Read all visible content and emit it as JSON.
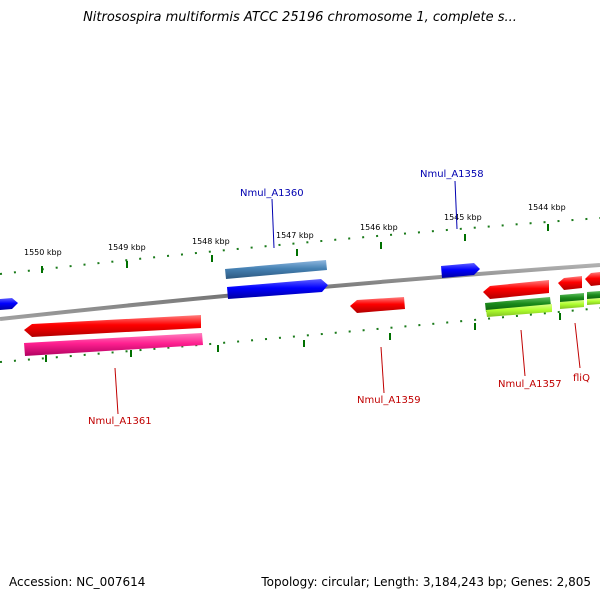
{
  "title": "Nitrosospira multiformis ATCC 25196 chromosome 1, complete s...",
  "footer": {
    "accession": "Accession: NC_007614",
    "summary": "Topology: circular; Length: 3,184,243 bp; Genes: 2,805"
  },
  "scale_labels": [
    "1550 kbp",
    "1549 kbp",
    "1548 kbp",
    "1547 kbp",
    "1546 kbp",
    "1545 kbp",
    "1544 kbp"
  ],
  "gene_labels": {
    "nmul_a1360": "Nmul_A1360",
    "nmul_a1358": "Nmul_A1358",
    "nmul_a1361": "Nmul_A1361",
    "nmul_a1359": "Nmul_A1359",
    "nmul_a1357": "Nmul_A1357",
    "fliq": "fliQ"
  },
  "colors": {
    "forward_label": "#0000b0",
    "reverse_label": "#b00000",
    "backbone": "#808080",
    "tick": "#007000",
    "gene_red": "#ff0000",
    "gene_pink": "#ff2090",
    "gene_blue": "#0000ff",
    "gene_steelblue": "#4682b4",
    "gene_green": "#1a8a1a",
    "gene_lime": "#b0ff30"
  }
}
